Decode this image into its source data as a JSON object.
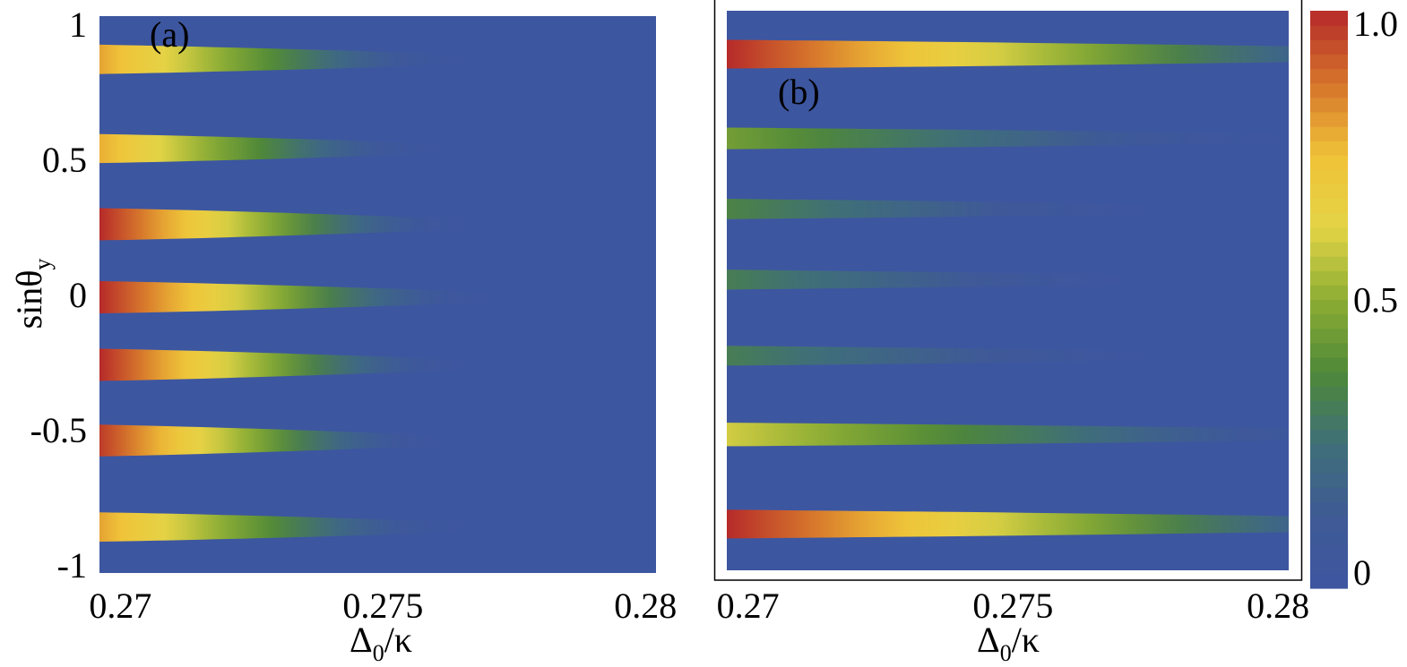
{
  "colors": {
    "background": "#3d56a0",
    "colormap": [
      "#3d56a0",
      "#3f5a95",
      "#3f6f78",
      "#4f8838",
      "#8cad34",
      "#e4d446",
      "#f0c238",
      "#d5742b",
      "#b62a2a"
    ]
  },
  "chart_data": [
    {
      "type": "heatmap",
      "panel_label": "(a)",
      "xlabel": "Δ0/κ",
      "ylabel": "sinθy",
      "xlim": [
        0.2696,
        0.2802
      ],
      "ylim": [
        -1.03,
        1.03
      ],
      "x_ticks": [
        {
          "value": 0.27,
          "label": "0.27"
        },
        {
          "value": 0.275,
          "label": "0.275"
        },
        {
          "value": 0.28,
          "label": "0.28"
        }
      ],
      "y_ticks": [
        {
          "value": 1,
          "label": "1"
        },
        {
          "value": 0.5,
          "label": "0.5"
        },
        {
          "value": 0,
          "label": "0"
        },
        {
          "value": -0.5,
          "label": "-0.5"
        },
        {
          "value": -1,
          "label": "-1"
        }
      ],
      "bands": [
        {
          "y": 0.87,
          "peak": 0.8,
          "decay_end": 0.277
        },
        {
          "y": 0.54,
          "peak": 0.78,
          "decay_end": 0.2765
        },
        {
          "y": 0.26,
          "peak": 1.0,
          "decay_end": 0.277
        },
        {
          "y": -0.01,
          "peak": 1.0,
          "decay_end": 0.2775
        },
        {
          "y": -0.26,
          "peak": 1.0,
          "decay_end": 0.277
        },
        {
          "y": -0.54,
          "peak": 0.97,
          "decay_end": 0.2765
        },
        {
          "y": -0.86,
          "peak": 0.8,
          "decay_end": 0.277
        }
      ]
    },
    {
      "type": "heatmap",
      "panel_label": "(b)",
      "xlabel": "Δ0/κ",
      "xlim": [
        0.2696,
        0.2802
      ],
      "ylim": [
        -1.03,
        1.03
      ],
      "x_ticks": [
        {
          "value": 0.27,
          "label": "0.27"
        },
        {
          "value": 0.275,
          "label": "0.275"
        },
        {
          "value": 0.28,
          "label": "0.28"
        }
      ],
      "bands": [
        {
          "y": 0.87,
          "peak": 1.0,
          "decay_end": 0.285
        },
        {
          "y": 0.56,
          "peak": 0.45,
          "decay_end": 0.281
        },
        {
          "y": 0.3,
          "peak": 0.35,
          "decay_end": 0.2785
        },
        {
          "y": 0.04,
          "peak": 0.32,
          "decay_end": 0.278
        },
        {
          "y": -0.24,
          "peak": 0.32,
          "decay_end": 0.2785
        },
        {
          "y": -0.53,
          "peak": 0.6,
          "decay_end": 0.283
        },
        {
          "y": -0.86,
          "peak": 1.0,
          "decay_end": 0.285
        }
      ]
    }
  ],
  "colorbar": {
    "range": [
      0,
      1
    ],
    "ticks": [
      {
        "value": 1,
        "label": "1.0"
      },
      {
        "value": 0.5,
        "label": "0.5"
      },
      {
        "value": 0,
        "label": "0"
      }
    ]
  }
}
